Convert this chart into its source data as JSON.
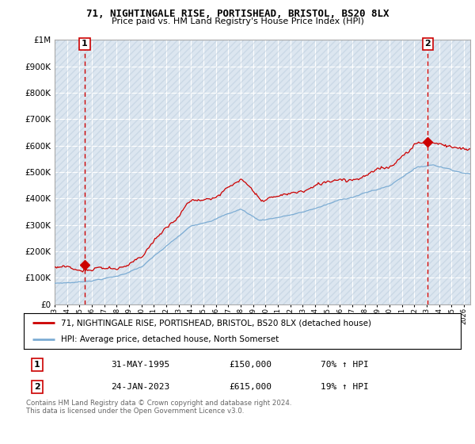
{
  "title": "71, NIGHTINGALE RISE, PORTISHEAD, BRISTOL, BS20 8LX",
  "subtitle": "Price paid vs. HM Land Registry's House Price Index (HPI)",
  "legend_line1": "71, NIGHTINGALE RISE, PORTISHEAD, BRISTOL, BS20 8LX (detached house)",
  "legend_line2": "HPI: Average price, detached house, North Somerset",
  "annotation1_date": "31-MAY-1995",
  "annotation1_price": "£150,000",
  "annotation1_hpi": "70% ↑ HPI",
  "annotation2_date": "24-JAN-2023",
  "annotation2_price": "£615,000",
  "annotation2_hpi": "19% ↑ HPI",
  "footer": "Contains HM Land Registry data © Crown copyright and database right 2024.\nThis data is licensed under the Open Government Licence v3.0.",
  "sale1_x": 1995.42,
  "sale1_y": 150000,
  "sale2_x": 2023.07,
  "sale2_y": 615000,
  "hpi_color": "#7dadd4",
  "price_color": "#cc0000",
  "vline_color": "#cc0000",
  "bg_color": "#dce6f0",
  "grid_color": "#ffffff",
  "ylim": [
    0,
    1000000
  ],
  "xlim": [
    1993.0,
    2026.5
  ]
}
